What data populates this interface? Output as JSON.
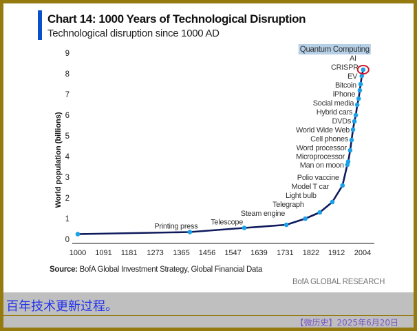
{
  "header": {
    "title": "Chart 14: 1000 Years of Technological Disruption",
    "subtitle": "Technological disruption since 1000 AD"
  },
  "chart_data": {
    "type": "line",
    "title": "Chart 14: 1000 Years of Technological Disruption",
    "subtitle": "Technological disruption since 1000 AD",
    "xlabel": "",
    "ylabel": "World population (billions)",
    "xlim": [
      1000,
      2050
    ],
    "ylim": [
      0,
      9
    ],
    "x_ticks": [
      1000,
      1091,
      1181,
      1273,
      1365,
      1456,
      1547,
      1639,
      1731,
      1822,
      1912,
      2004
    ],
    "y_ticks": [
      0,
      1,
      2,
      3,
      4,
      5,
      6,
      7,
      8,
      9
    ],
    "line_color": "#0d1a5c",
    "marker_color": "#1aa0e6",
    "highlight_color": "#d0142c",
    "series": [
      {
        "name": "World population",
        "points": [
          {
            "x": 1000,
            "y": 0.25,
            "label": ""
          },
          {
            "x": 1395,
            "y": 0.35,
            "label": "Printing press"
          },
          {
            "x": 1587,
            "y": 0.55,
            "label": "Telescope"
          },
          {
            "x": 1735,
            "y": 0.7,
            "label": "Steam engine"
          },
          {
            "x": 1802,
            "y": 1.0,
            "label": "Telegraph"
          },
          {
            "x": 1853,
            "y": 1.3,
            "label": "Light bulb"
          },
          {
            "x": 1897,
            "y": 1.8,
            "label": "Model T car"
          },
          {
            "x": 1933,
            "y": 2.6,
            "label": "Polio vaccine"
          },
          {
            "x": 1950,
            "y": 3.6,
            "label": "Man on moon"
          },
          {
            "x": 1953,
            "y": 3.75,
            "label": "Microprocessor"
          },
          {
            "x": 1960,
            "y": 4.3,
            "label": "Word processor"
          },
          {
            "x": 1965,
            "y": 4.8,
            "label": "Cell phones"
          },
          {
            "x": 1970,
            "y": 5.3,
            "label": "World Wide Web"
          },
          {
            "x": 1975,
            "y": 5.7,
            "label": "DVDs"
          },
          {
            "x": 1980,
            "y": 6.0,
            "label": "Hybrid cars"
          },
          {
            "x": 1985,
            "y": 6.5,
            "label": "Social media"
          },
          {
            "x": 1990,
            "y": 6.8,
            "label": "iPhone"
          },
          {
            "x": 1994,
            "y": 7.2,
            "label": "Bitcoin"
          },
          {
            "x": 1997,
            "y": 7.5,
            "label": "EV"
          },
          {
            "x": 2001,
            "y": 7.9,
            "label": "CRISPR"
          },
          {
            "x": 2006,
            "y": 8.2,
            "label": "AI"
          }
        ]
      }
    ],
    "annotations": [
      {
        "text": "Quantum Computing",
        "highlighted": true
      }
    ]
  },
  "footer": {
    "source_label": "Source:",
    "source_text": " BofA Global Investment Strategy, Global Financial Data",
    "brand": "BofA GLOBAL RESEARCH"
  },
  "caption": "百年技术更新过程。",
  "byline": "【微历史】2025年6月20日"
}
